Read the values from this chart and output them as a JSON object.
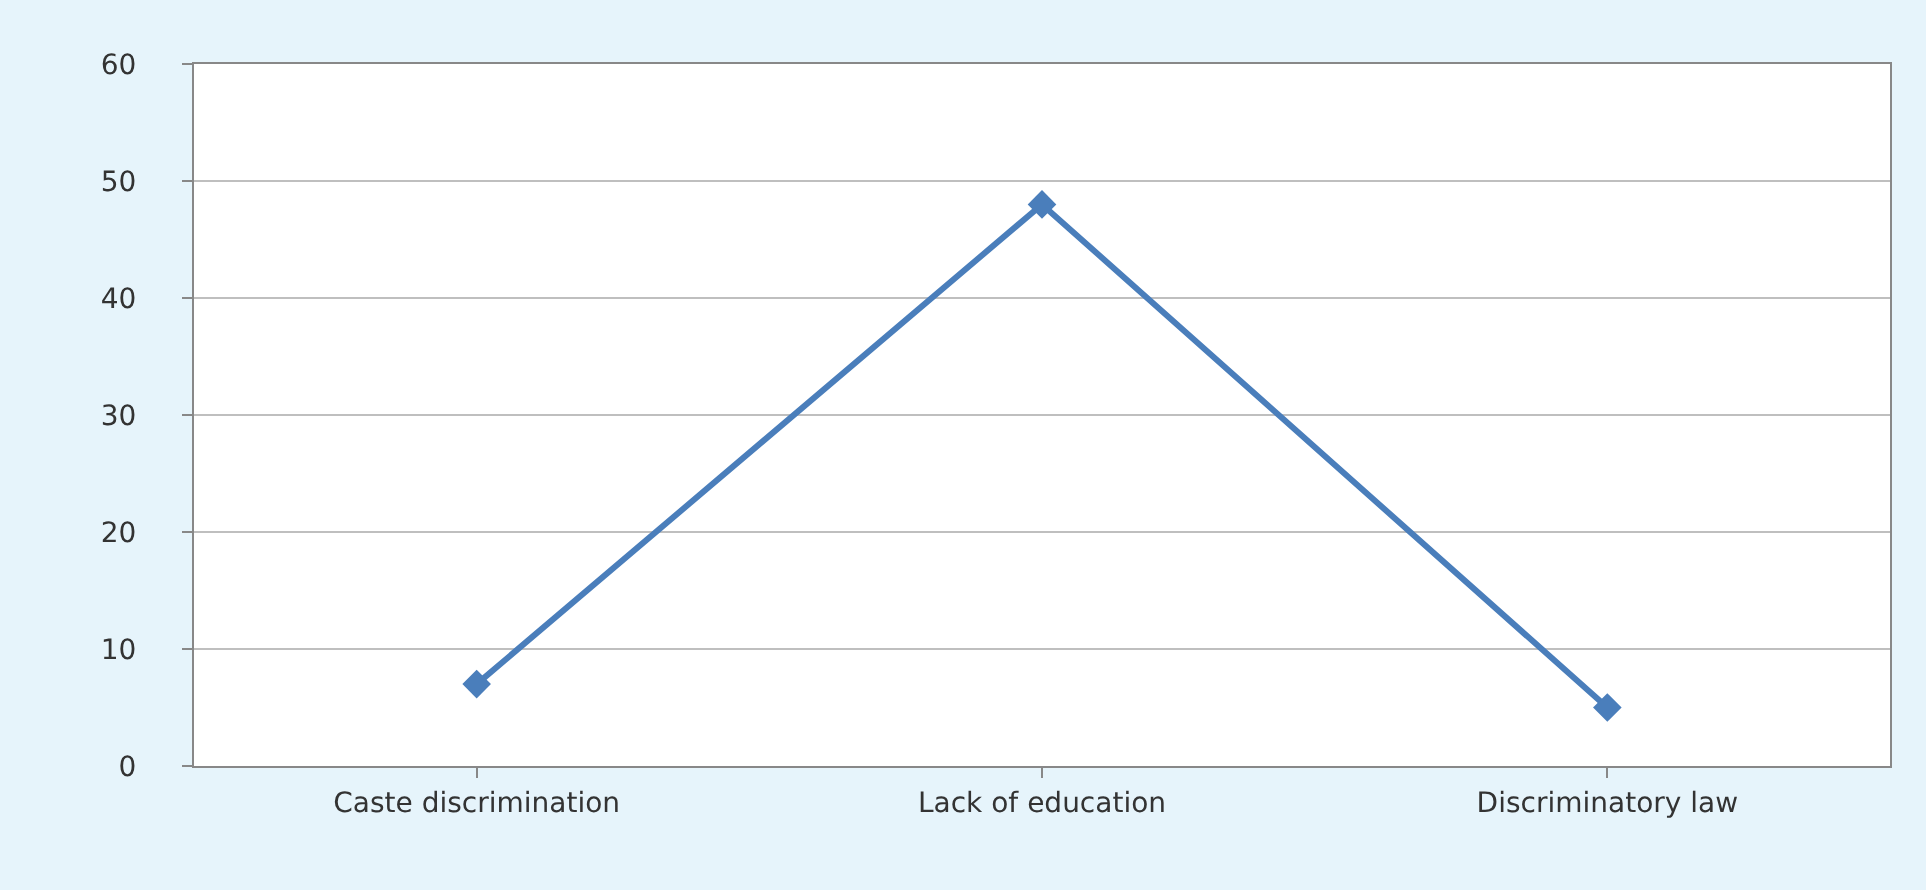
{
  "chart_data": {
    "type": "line",
    "categories": [
      "Caste discrimination",
      "Lack of education",
      "Discriminatory law"
    ],
    "series": [
      {
        "color": "#4a7ebb",
        "values": [
          7,
          48,
          5
        ]
      }
    ],
    "ylim": [
      0,
      60
    ],
    "yticks": [
      0,
      10,
      20,
      30,
      40,
      50,
      60
    ],
    "grid": "y",
    "legend": false,
    "marker": "diamond",
    "line_style": "solid"
  }
}
